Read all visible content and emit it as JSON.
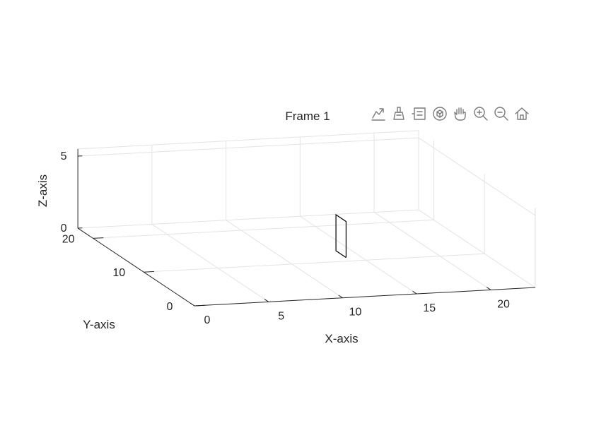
{
  "chart_data": {
    "type": "3d-line",
    "title": "Frame 1",
    "xlabel": "X-axis",
    "ylabel": "Y-axis",
    "zlabel": "Z-axis",
    "xlim": [
      0,
      23
    ],
    "ylim": [
      0,
      23
    ],
    "zlim": [
      0,
      5.5
    ],
    "xticks": [
      0,
      5,
      10,
      15,
      20
    ],
    "yticks": [
      0,
      10,
      20
    ],
    "zticks": [
      0,
      5
    ],
    "grid": true,
    "series": [
      {
        "values": [
          {
            "x": 14,
            "y": 11,
            "z": 0
          },
          {
            "x": 14,
            "y": 11,
            "z": 2.5
          },
          {
            "x": 14,
            "y": 13,
            "z": 2.5
          },
          {
            "x": 14,
            "y": 13,
            "z": 0
          },
          {
            "x": 14,
            "y": 11,
            "z": 0
          }
        ],
        "color": "#000000"
      }
    ]
  },
  "toolbar": {
    "buttons": [
      {
        "icon": "export-icon"
      },
      {
        "icon": "brush-icon"
      },
      {
        "icon": "data-tips-icon"
      },
      {
        "icon": "rotate-3d-icon"
      },
      {
        "icon": "pan-hand-icon"
      },
      {
        "icon": "zoom-in-icon"
      },
      {
        "icon": "zoom-out-icon"
      },
      {
        "icon": "home-icon"
      }
    ]
  }
}
